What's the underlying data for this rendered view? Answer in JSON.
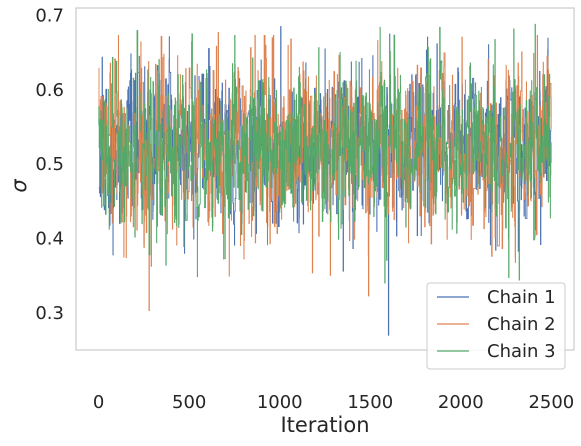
{
  "chart_data": {
    "type": "line",
    "title": "",
    "xlabel": "Iteration",
    "ylabel": "σ",
    "xlim": [
      -125,
      2625
    ],
    "ylim": [
      0.25,
      0.71
    ],
    "xticks": [
      0,
      500,
      1000,
      1500,
      2000,
      2500
    ],
    "yticks": [
      0.3,
      0.4,
      0.5,
      0.6,
      0.7
    ],
    "xtick_labels": [
      "0",
      "500",
      "1000",
      "1500",
      "2000",
      "2500"
    ],
    "ytick_labels": [
      "0.3",
      "0.4",
      "0.5",
      "0.6",
      "0.7"
    ],
    "grid": false,
    "legend_position": "bottom-right",
    "n_iterations": 2500,
    "series": [
      {
        "name": "Chain 1",
        "color": "#4c72b0",
        "mean": 0.525,
        "sd": 0.05,
        "y_min": 0.27,
        "y_max": 0.685,
        "min_at": 1600,
        "max_at": 1005,
        "seed": 11
      },
      {
        "name": "Chain 2",
        "color": "#dd8452",
        "mean": 0.52,
        "sd": 0.055,
        "y_min": 0.303,
        "y_max": 0.677,
        "min_at": 278,
        "max_at": 660,
        "seed": 23
      },
      {
        "name": "Chain 3",
        "color": "#55a868",
        "mean": 0.52,
        "sd": 0.05,
        "y_min": 0.34,
        "y_max": 0.688,
        "min_at": 1580,
        "max_at": 2410,
        "seed": 37
      }
    ]
  }
}
